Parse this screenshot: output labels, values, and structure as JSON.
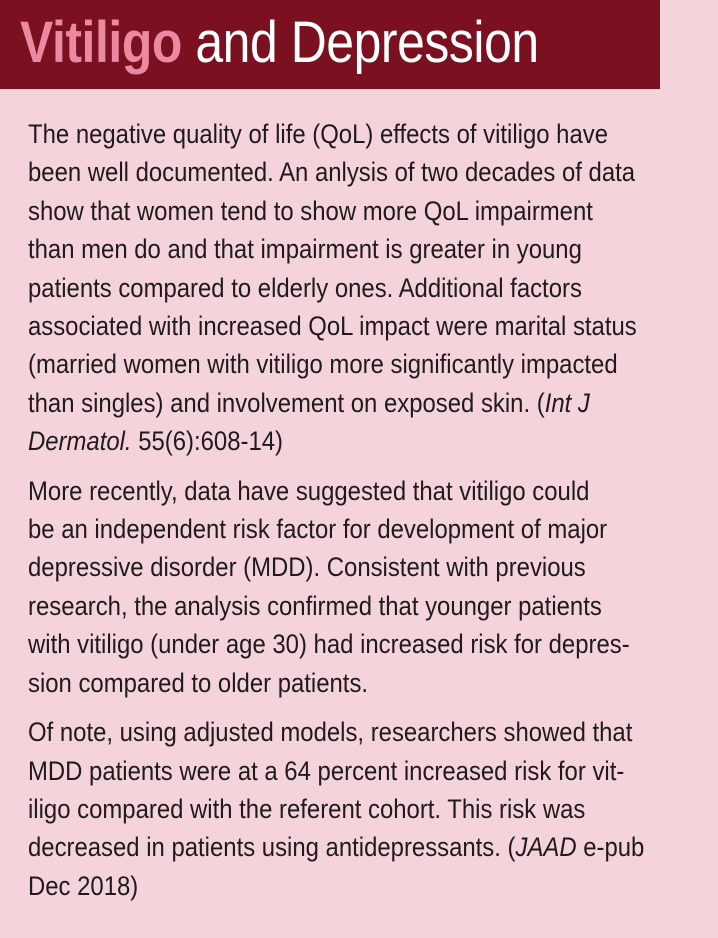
{
  "title": {
    "accent": "Vitiligo",
    "rest": " and Depression"
  },
  "paragraphs": [
    {
      "lines": [
        [
          {
            "text": "The negative quality of life (QoL) effects of vitiligo have"
          }
        ],
        [
          {
            "text": "been well documented. An anlysis of two decades of data"
          }
        ],
        [
          {
            "text": "show that women tend to show more QoL impairment"
          }
        ],
        [
          {
            "text": "than men do and that impairment is greater in young"
          }
        ],
        [
          {
            "text": "patients compared to elderly ones. Additional factors"
          }
        ],
        [
          {
            "text": "associated with increased QoL impact were marital status"
          }
        ],
        [
          {
            "text": "(married women with vitiligo more significantly impacted"
          }
        ],
        [
          {
            "text": "than singles) and involvement on exposed skin. ("
          },
          {
            "text": "Int J",
            "italic": true
          }
        ],
        [
          {
            "text": "Dermatol.",
            "italic": true
          },
          {
            "text": " 55(6):608-14)"
          }
        ]
      ]
    },
    {
      "lines": [
        [
          {
            "text": "More recently, data have suggested that vitiligo could"
          }
        ],
        [
          {
            "text": "be an independent risk factor for development of major"
          }
        ],
        [
          {
            "text": "depressive disorder (MDD). Consistent with previous"
          }
        ],
        [
          {
            "text": "research, the analysis confirmed that younger patients"
          }
        ],
        [
          {
            "text": "with vitiligo (under age 30) had increased risk for depres-"
          }
        ],
        [
          {
            "text": "sion compared to older patients."
          }
        ]
      ]
    },
    {
      "lines": [
        [
          {
            "text": "Of note, using adjusted models, researchers showed that"
          }
        ],
        [
          {
            "text": "MDD patients were at a 64 percent increased risk for vit-"
          }
        ],
        [
          {
            "text": "iligo compared with the referent cohort. This risk was"
          }
        ],
        [
          {
            "text": "decreased in patients using antidepressants. ("
          },
          {
            "text": "JAAD",
            "italic": true
          },
          {
            "text": " e-pub"
          }
        ],
        [
          {
            "text": "Dec 2018)"
          }
        ]
      ]
    }
  ],
  "colors": {
    "background": "#f5d3da",
    "title_bar": "#7b1020",
    "title_accent": "#ea8aa0",
    "title_text": "#ffffff",
    "body_text": "#1f1b1c"
  }
}
